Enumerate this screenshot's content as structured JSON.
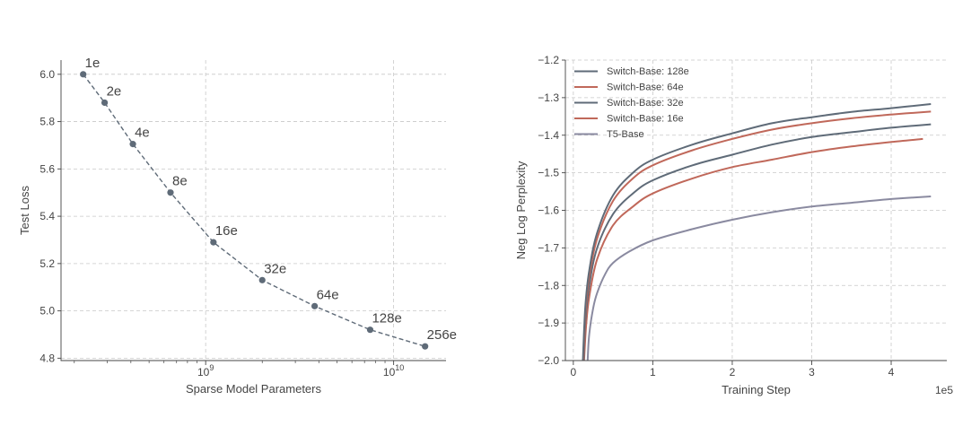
{
  "chart_data": [
    {
      "type": "scatter",
      "connected": true,
      "line_style": "dashed",
      "xlabel": "Sparse Model Parameters",
      "ylabel": "Test Loss",
      "x_scale": "log",
      "xlim": [
        170000000,
        19000000000
      ],
      "ylim": [
        4.79,
        6.06
      ],
      "x_ticks": [
        {
          "value": 1000000000,
          "base": "10",
          "exp": "9"
        },
        {
          "value": 10000000000,
          "base": "10",
          "exp": "10"
        }
      ],
      "y_ticks": [
        "4.8",
        "5.0",
        "5.2",
        "5.4",
        "5.6",
        "5.8",
        "6.0"
      ],
      "grid": true,
      "color": "#5f6b78",
      "points": [
        {
          "x": 223000000,
          "y": 6.0,
          "label": "1e"
        },
        {
          "x": 290000000,
          "y": 5.88,
          "label": "2e"
        },
        {
          "x": 410000000,
          "y": 5.705,
          "label": "4e"
        },
        {
          "x": 650000000,
          "y": 5.5,
          "label": "8e"
        },
        {
          "x": 1100000000,
          "y": 5.29,
          "label": "16e"
        },
        {
          "x": 2000000000,
          "y": 5.13,
          "label": "32e"
        },
        {
          "x": 3800000000,
          "y": 5.02,
          "label": "64e"
        },
        {
          "x": 7500000000,
          "y": 4.92,
          "label": "128e"
        },
        {
          "x": 14700000000,
          "y": 4.85,
          "label": "256e"
        }
      ]
    },
    {
      "type": "line",
      "xlabel": "Training Step",
      "ylabel": "Neg Log Perplexity",
      "x_multiplier": "1e5",
      "xlim": [
        -0.1,
        4.7
      ],
      "ylim": [
        -2.0,
        -1.2
      ],
      "x_ticks": [
        "0",
        "1",
        "2",
        "3",
        "4"
      ],
      "y_ticks": [
        "−2.0",
        "−1.9",
        "−1.8",
        "−1.7",
        "−1.6",
        "−1.5",
        "−1.4",
        "−1.3",
        "−1.2"
      ],
      "grid": true,
      "legend_position": "top-left",
      "series": [
        {
          "name": "Switch-Base: 128e",
          "color": "#5f6b78",
          "x": [
            0.12,
            0.15,
            0.2,
            0.3,
            0.5,
            0.75,
            1.0,
            1.5,
            2.0,
            2.5,
            3.0,
            3.5,
            4.0,
            4.5
          ],
          "y": [
            -2.0,
            -1.86,
            -1.76,
            -1.66,
            -1.56,
            -1.5,
            -1.465,
            -1.425,
            -1.395,
            -1.368,
            -1.352,
            -1.338,
            -1.328,
            -1.317
          ]
        },
        {
          "name": "Switch-Base: 64e",
          "color": "#c0685a",
          "x": [
            0.125,
            0.15,
            0.2,
            0.3,
            0.5,
            0.75,
            1.0,
            1.5,
            2.0,
            2.5,
            3.0,
            3.5,
            4.0,
            4.5
          ],
          "y": [
            -2.0,
            -1.88,
            -1.775,
            -1.675,
            -1.575,
            -1.515,
            -1.48,
            -1.44,
            -1.41,
            -1.385,
            -1.368,
            -1.355,
            -1.345,
            -1.337
          ]
        },
        {
          "name": "Switch-Base: 32e",
          "color": "#5f6b78",
          "x": [
            0.13,
            0.15,
            0.2,
            0.3,
            0.5,
            0.75,
            1.0,
            1.5,
            2.0,
            2.5,
            3.0,
            3.5,
            4.0,
            4.5
          ],
          "y": [
            -2.0,
            -1.9,
            -1.8,
            -1.7,
            -1.61,
            -1.555,
            -1.52,
            -1.48,
            -1.452,
            -1.425,
            -1.405,
            -1.392,
            -1.38,
            -1.371
          ]
        },
        {
          "name": "Switch-Base: 16e",
          "color": "#c0685a",
          "x": [
            0.135,
            0.16,
            0.2,
            0.3,
            0.5,
            0.75,
            1.0,
            1.5,
            2.0,
            2.5,
            3.0,
            3.5,
            4.0,
            4.4
          ],
          "y": [
            -2.0,
            -1.91,
            -1.83,
            -1.73,
            -1.64,
            -1.59,
            -1.555,
            -1.515,
            -1.485,
            -1.465,
            -1.445,
            -1.43,
            -1.418,
            -1.41
          ]
        },
        {
          "name": "T5-Base",
          "color": "#8a8aa0",
          "x": [
            0.18,
            0.2,
            0.25,
            0.3,
            0.4,
            0.5,
            0.7,
            1.0,
            1.5,
            2.0,
            2.5,
            3.0,
            3.5,
            4.0,
            4.5
          ],
          "y": [
            -2.0,
            -1.93,
            -1.86,
            -1.82,
            -1.77,
            -1.74,
            -1.71,
            -1.68,
            -1.65,
            -1.625,
            -1.605,
            -1.59,
            -1.58,
            -1.57,
            -1.563
          ]
        }
      ]
    }
  ]
}
